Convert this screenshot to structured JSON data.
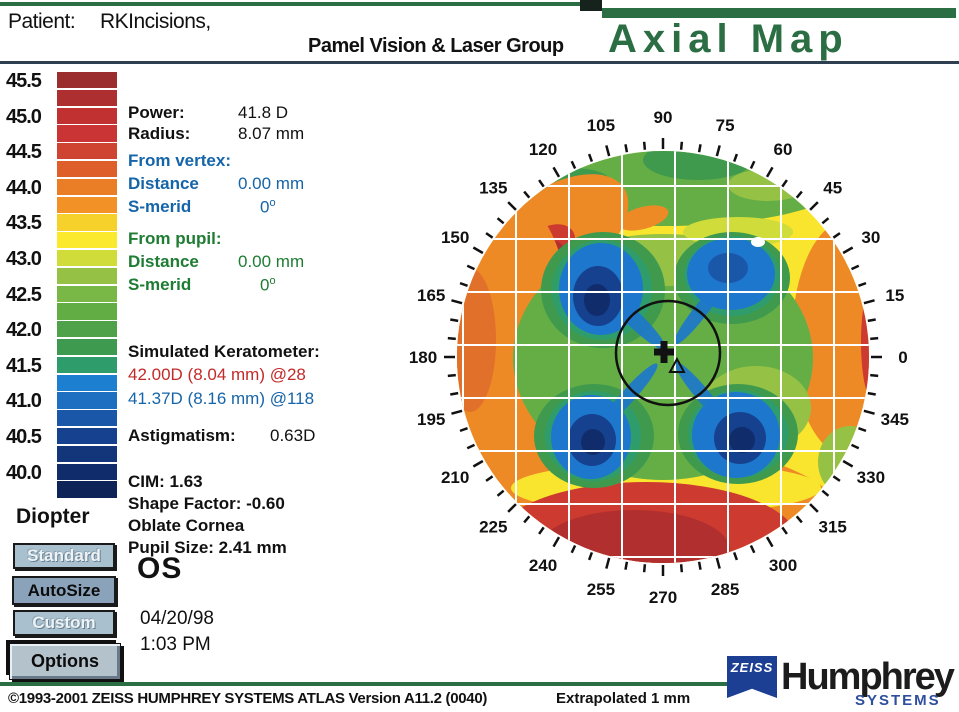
{
  "header": {
    "patient_label": "Patient:",
    "patient_name": "RKIncisions,",
    "clinic": "Pamel Vision & Laser Group",
    "title": "Axial Map",
    "title_color": "#2c6e44"
  },
  "scale": {
    "unit_label": "Diopter",
    "labels": [
      "45.5",
      "45.0",
      "44.5",
      "44.0",
      "43.5",
      "43.0",
      "42.5",
      "42.0",
      "41.5",
      "41.0",
      "40.5",
      "40.0"
    ],
    "swatches": [
      "#9b2d2e",
      "#ae2f2f",
      "#c13131",
      "#ca3434",
      "#cf4430",
      "#de5f2a",
      "#ea7e26",
      "#f29126",
      "#f6d02b",
      "#fbe92d",
      "#cfdc3a",
      "#95c245",
      "#79b747",
      "#63ad45",
      "#4fa24a",
      "#3e9a4e",
      "#2f9c6c",
      "#1d7fd0",
      "#1e6fc2",
      "#1a57a8",
      "#16418e",
      "#133579",
      "#112c6b",
      "#0e2459"
    ]
  },
  "readings": {
    "power_label": "Power:",
    "power_value": "41.8 D",
    "radius_label": "Radius:",
    "radius_value": "8.07 mm",
    "deg_mark": "o",
    "from_vertex": {
      "title": "From vertex:",
      "distance_label": "Distance",
      "distance_value": "0.00 mm",
      "smerid_label": "S-merid",
      "smerid_value": "0"
    },
    "from_pupil": {
      "title": "From pupil:",
      "distance_label": "Distance",
      "distance_value": "0.00 mm",
      "smerid_label": "S-merid",
      "smerid_value": "0"
    },
    "sim_k": {
      "title": "Simulated Keratometer:",
      "k1": "42.00D (8.04 mm) @28",
      "k2": "41.37D (8.16 mm) @118"
    },
    "astigmatism_label": "Astigmatism:",
    "astigmatism_value": "0.63D",
    "cim": "CIM:   1.63",
    "shape_factor": "Shape Factor: -0.60",
    "cornea_shape": "Oblate Cornea",
    "pupil_size": "Pupil Size: 2.41 mm",
    "eye": "OS",
    "exam_date": "04/20/98",
    "exam_time": "1:03 PM"
  },
  "buttons": {
    "standard": "Standard",
    "autosize": "AutoSize",
    "custom": "Custom",
    "options": "Options"
  },
  "map": {
    "degree_labels": [
      "0",
      "15",
      "30",
      "45",
      "60",
      "75",
      "90",
      "105",
      "120",
      "135",
      "150",
      "165",
      "180",
      "195",
      "210",
      "225",
      "240",
      "255",
      "270",
      "285",
      "300",
      "315",
      "330",
      "345"
    ],
    "label_step_deg": 15,
    "tick_step_deg": 5,
    "diopter_range": [
      40.0,
      45.5
    ],
    "diopter_step": 0.25,
    "grid": "on",
    "palette": {
      "yellow": "#f9e52e",
      "orange": "#ee8a26",
      "orangedeep": "#e0702a",
      "red": "#cd3a30",
      "darkred": "#b12f2e",
      "yellowgreen": "#cfdc3a",
      "lightgreen": "#95c245",
      "green": "#65ae46",
      "darkgreen": "#3f9a4e",
      "teal": "#2f9c6c",
      "blue": "#1d77cd",
      "midblue": "#1a57a8",
      "navy": "#16418e",
      "deepnavy": "#112c6b"
    }
  },
  "footer": {
    "copyright": "©1993-2001 ZEISS HUMPHREY SYSTEMS ATLAS  Version A11.2 (0040)",
    "extrapolated": "Extrapolated 1 mm",
    "logo_zeiss": "ZEISS",
    "logo_humphrey": "Humphrey",
    "logo_systems": "SYSTEMS"
  }
}
